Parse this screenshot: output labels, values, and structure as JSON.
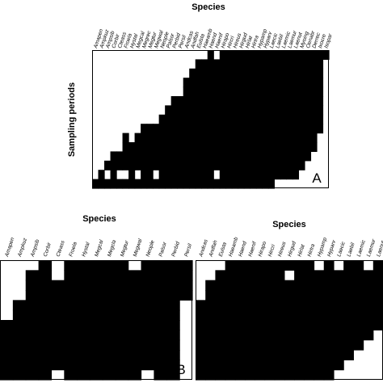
{
  "chart_data": [
    {
      "type": "heatmap",
      "panel_label": "A",
      "title": "Species",
      "ylabel": "Sampling periods",
      "n_rows": 15,
      "categories": [
        "Amapen",
        "Ampkuz",
        "Ampsib",
        "Corbir",
        "Cteass",
        "Froela",
        "Hystal",
        "Megcal",
        "Megrec",
        "Megtur",
        "Megwal",
        "Neople",
        "Palsor",
        "Perbid",
        "Persil",
        "Andcas",
        "Andfah",
        "Eulsta",
        "Haeamb",
        "Haend",
        "Haenif",
        "Hirapo",
        "Hircri",
        "Hireus",
        "Hirgud",
        "Hirlat",
        "Hirtra",
        "Hypamp",
        "Hyparv",
        "Laecic",
        "Laebil",
        "Laemic",
        "Laemur",
        "Laenut",
        "Myoing",
        "Oenabr",
        "Derrec",
        "Ixocre",
        "Isopar"
      ],
      "first_occurrence_row": [
        14,
        13,
        12,
        11,
        11,
        9,
        10,
        9,
        8,
        8,
        8,
        7,
        6,
        5,
        5,
        3,
        2,
        1,
        0,
        0,
        0,
        0,
        0,
        0,
        0,
        0,
        0,
        0,
        0,
        0,
        0,
        0,
        0,
        0,
        0,
        0,
        0,
        0,
        0
      ],
      "last_occurrence_row": [
        14,
        14,
        14,
        14,
        14,
        14,
        14,
        14,
        14,
        14,
        14,
        14,
        14,
        14,
        14,
        14,
        14,
        14,
        14,
        14,
        14,
        14,
        14,
        14,
        14,
        14,
        14,
        14,
        14,
        14,
        13,
        13,
        13,
        13,
        12,
        11,
        10,
        8,
        0
      ],
      "absent_cells": [
        [
          3,
          6
        ],
        [
          6,
          6
        ],
        [
          4,
          7
        ],
        [
          1,
          13
        ],
        [
          13,
          2
        ],
        [
          13,
          4
        ],
        [
          13,
          5
        ],
        [
          13,
          7
        ],
        [
          13,
          10
        ],
        [
          0,
          18
        ],
        [
          0,
          20
        ],
        [
          13,
          20
        ]
      ]
    },
    {
      "type": "heatmap",
      "panel_label": "B",
      "title": "Species",
      "n_rows": 12,
      "categories": [
        "Amapen",
        "Ampkuz",
        "Ampsib",
        "Corbir",
        "Cteass",
        "Froela",
        "Hystal",
        "Megcal",
        "Megcla",
        "Megtur",
        "Megwal",
        "Neople",
        "Palsor",
        "Perbid",
        "Persil"
      ],
      "first_occurrence_row": [
        6,
        4,
        1,
        0,
        2,
        0,
        0,
        0,
        0,
        0,
        0,
        0,
        0,
        0,
        0
      ],
      "last_occurrence_row": [
        12,
        12,
        12,
        12,
        11,
        12,
        12,
        12,
        12,
        12,
        12,
        12,
        12,
        12,
        3
      ],
      "absent_cells": [
        [
          0,
          2
        ],
        [
          0,
          10
        ],
        [
          12,
          1
        ],
        [
          12,
          3
        ],
        [
          11,
          4
        ],
        [
          11,
          11
        ],
        [
          12,
          12
        ]
      ]
    },
    {
      "type": "heatmap",
      "title": "Species",
      "n_rows": 12,
      "categories": [
        "Andcas",
        "Andfah",
        "Eulsta",
        "Haeamb",
        "Haend",
        "Haenif",
        "Hirapo",
        "Hircri",
        "Hireus",
        "Hirgud",
        "Hirlat",
        "Hirtra",
        "Hypamp",
        "Hyparv",
        "Laecic",
        "Laebil",
        "Laemic",
        "Laemur",
        "Laenut"
      ],
      "first_occurrence_row": [
        4,
        2,
        1,
        0,
        0,
        0,
        0,
        0,
        0,
        0,
        0,
        0,
        0,
        0,
        0,
        0,
        0,
        0,
        0
      ],
      "last_occurrence_row": [
        12,
        12,
        12,
        12,
        12,
        12,
        12,
        12,
        12,
        12,
        12,
        12,
        12,
        11,
        10,
        9,
        8,
        7,
        6
      ],
      "absent_cells": [
        [
          0,
          12
        ],
        [
          0,
          14
        ],
        [
          0,
          17
        ],
        [
          1,
          9
        ]
      ]
    }
  ]
}
